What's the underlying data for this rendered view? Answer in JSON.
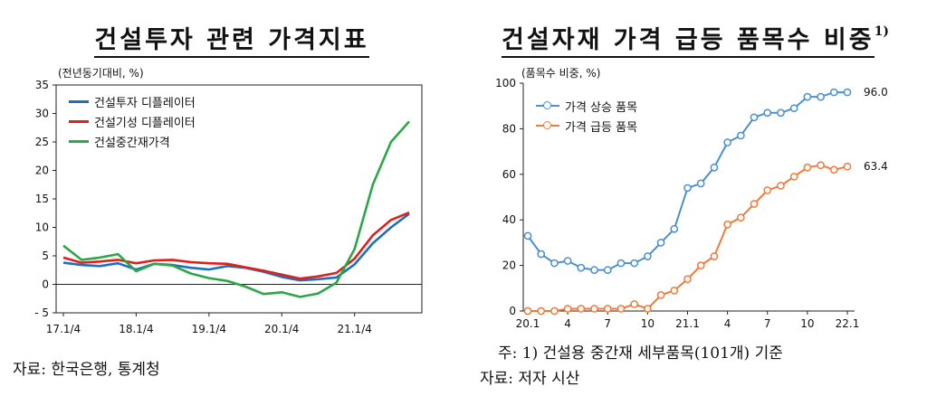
{
  "left": {
    "title": "건설투자 관련 가격지표",
    "unit": "(전년동기대비, %)",
    "source": "자료: 한국은행, 통계청"
  },
  "right": {
    "title": "건설자재 가격 급등 품목수 비중",
    "title_sup": "1)",
    "unit": "(품목수 비중, %)",
    "footnote": "주: 1) 건설용 중간재 세부품목(101개) 기준",
    "source": "자료: 저자 시산"
  },
  "chart_data": [
    {
      "type": "line",
      "title": "건설투자 관련 가격지표",
      "ylabel": "(전년동기대비, %)",
      "ylim": [
        -5,
        35
      ],
      "yticks": [
        -5,
        0,
        5,
        10,
        15,
        20,
        25,
        30,
        35
      ],
      "ytick_labels": [
        "- 5",
        "0",
        "5",
        "10",
        "15",
        "20",
        "25",
        "30",
        "35"
      ],
      "xticks": [
        "17.1/4",
        "18.1/4",
        "19.1/4",
        "20.1/4",
        "21.1/4"
      ],
      "x": [
        "17.1/4",
        "17.2/4",
        "17.3/4",
        "17.4/4",
        "18.1/4",
        "18.2/4",
        "18.3/4",
        "18.4/4",
        "19.1/4",
        "19.2/4",
        "19.3/4",
        "19.4/4",
        "20.1/4",
        "20.2/4",
        "20.3/4",
        "20.4/4",
        "21.1/4",
        "21.2/4",
        "21.3/4",
        "21.4/4"
      ],
      "grid": false,
      "legend": "top-left",
      "series": [
        {
          "name": "건설투자 디플레이터",
          "color": "#1f6fbf",
          "values": [
            3.8,
            3.4,
            3.2,
            3.7,
            2.6,
            3.6,
            3.4,
            2.9,
            2.6,
            3.2,
            2.9,
            2.2,
            1.3,
            0.7,
            0.9,
            1.2,
            3.5,
            7.2,
            10.0,
            12.4
          ]
        },
        {
          "name": "건설기성 디플레이터",
          "color": "#e0201c",
          "values": [
            4.7,
            3.8,
            4.0,
            4.3,
            3.7,
            4.2,
            4.3,
            3.9,
            3.7,
            3.6,
            3.0,
            2.4,
            1.7,
            1.0,
            1.4,
            2.0,
            4.5,
            8.6,
            11.3,
            12.6
          ]
        },
        {
          "name": "건설중간재가격",
          "color": "#2aa845",
          "values": [
            6.8,
            4.3,
            4.7,
            5.3,
            2.3,
            3.6,
            3.3,
            1.9,
            1.1,
            0.6,
            -0.4,
            -1.7,
            -1.4,
            -2.2,
            -1.6,
            0.3,
            6.2,
            17.5,
            25.0,
            28.6
          ]
        }
      ]
    },
    {
      "type": "line",
      "title": "건설자재 가격 급등 품목수 비중",
      "ylabel": "(품목수 비중, %)",
      "ylim": [
        0,
        100
      ],
      "yticks": [
        0,
        20,
        40,
        60,
        80,
        100
      ],
      "xticks": [
        "20.1",
        "4",
        "7",
        "10",
        "21.1",
        "4",
        "7",
        "10",
        "22.1"
      ],
      "x": [
        "20.1",
        "20.2",
        "20.3",
        "20.4",
        "20.5",
        "20.6",
        "20.7",
        "20.8",
        "20.9",
        "20.10",
        "20.11",
        "20.12",
        "21.1",
        "21.2",
        "21.3",
        "21.4",
        "21.5",
        "21.6",
        "21.7",
        "21.8",
        "21.9",
        "21.10",
        "21.11",
        "21.12",
        "22.1"
      ],
      "grid": false,
      "legend": "top-left",
      "end_labels": [
        "96.0",
        "63.4"
      ],
      "series": [
        {
          "name": "가격 상승 품목",
          "color": "#4a8fd0",
          "values": [
            33,
            25,
            21,
            22,
            19,
            18,
            18,
            21,
            21,
            24,
            30,
            36,
            54,
            56,
            63,
            74,
            77,
            85,
            87,
            87,
            89,
            94,
            94,
            96,
            96
          ]
        },
        {
          "name": "가격 급등 품목",
          "color": "#f07a3a",
          "values": [
            0,
            0,
            0,
            1,
            1,
            1,
            1,
            1,
            3,
            1,
            7,
            9,
            14,
            20,
            24,
            38,
            41,
            47,
            53,
            55,
            59,
            63,
            64,
            62,
            63.4
          ]
        }
      ]
    }
  ]
}
